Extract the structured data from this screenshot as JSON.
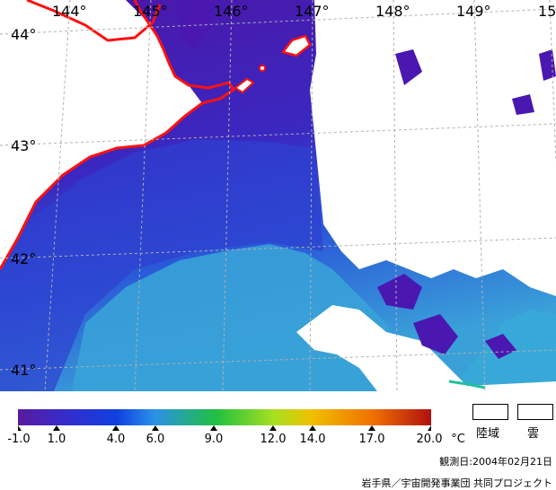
{
  "map": {
    "lon_labels": [
      "144°",
      "145°",
      "146°",
      "147°",
      "148°",
      "149°",
      "15"
    ],
    "lat_labels": [
      "44°",
      "43°",
      "42°",
      "41°"
    ]
  },
  "colorbar": {
    "ticks": [
      "-1.0",
      "1.0",
      "4.0",
      "6.0",
      "9.0",
      "12.0",
      "14.0",
      "17.0",
      "20.0"
    ],
    "unit": "°C",
    "colors": [
      "#5a1a9e",
      "#3a2ac8",
      "#1040e0",
      "#2a90e8",
      "#20c040",
      "#a8e020",
      "#f0c000",
      "#f07000",
      "#b01010"
    ]
  },
  "legend": {
    "land_label": "陸域",
    "cloud_label": "雲"
  },
  "footer": {
    "observation_date": "観測日:2004年02月21日",
    "credit": "岩手県／宇宙開発事業団 共同プロジェクト"
  },
  "colors": {
    "coastline": "#ff1010",
    "cold_sea": "#4a18b0",
    "mid_sea": "#2a48d8",
    "warm_sea": "#38a0d8",
    "cloud": "#ffffff"
  }
}
